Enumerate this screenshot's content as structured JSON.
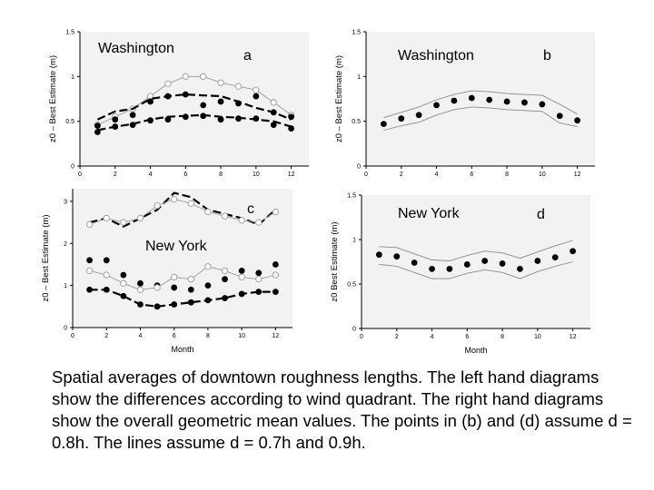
{
  "chart_data": [
    {
      "id": "a",
      "type": "line",
      "panel_label": "a",
      "city_label": "Washington",
      "ylabel": "z0 – Best Estimate (m)",
      "xlabel": "",
      "xlim": [
        0,
        13
      ],
      "ylim": [
        0,
        1.5
      ],
      "xticks": [
        0,
        2,
        4,
        6,
        8,
        10,
        12
      ],
      "yticks": [
        0,
        0.5,
        1,
        1.5
      ],
      "series": [
        {
          "name": "open circles upper",
          "style": "open-gray",
          "x": [
            1,
            2,
            3,
            4,
            5,
            6,
            7,
            8,
            9,
            10,
            11,
            12
          ],
          "y": [
            0.46,
            0.55,
            0.64,
            0.78,
            0.92,
            1.0,
            1.0,
            0.93,
            0.89,
            0.85,
            0.71,
            0.57
          ]
        },
        {
          "name": "dash upper",
          "style": "dash",
          "x": [
            1,
            2,
            3,
            4,
            5,
            6,
            7,
            8,
            9,
            10,
            11,
            12
          ],
          "y": [
            0.52,
            0.61,
            0.64,
            0.75,
            0.78,
            0.8,
            0.79,
            0.78,
            0.72,
            0.65,
            0.6,
            0.52
          ]
        },
        {
          "name": "filled dots upper",
          "style": "filled",
          "x": [
            1,
            2,
            3,
            4,
            5,
            6,
            7,
            8,
            9,
            10,
            11,
            12
          ],
          "y": [
            0.45,
            0.52,
            0.57,
            0.72,
            0.78,
            0.8,
            0.68,
            0.72,
            0.7,
            0.78,
            0.6,
            0.55
          ]
        },
        {
          "name": "dash lower",
          "style": "dash",
          "x": [
            1,
            2,
            3,
            4,
            5,
            6,
            7,
            8,
            9,
            10,
            11,
            12
          ],
          "y": [
            0.4,
            0.44,
            0.47,
            0.52,
            0.55,
            0.56,
            0.57,
            0.55,
            0.54,
            0.52,
            0.5,
            0.44
          ]
        },
        {
          "name": "filled dots lower",
          "style": "filled",
          "x": [
            1,
            2,
            3,
            4,
            5,
            6,
            7,
            8,
            9,
            10,
            11,
            12
          ],
          "y": [
            0.38,
            0.44,
            0.46,
            0.51,
            0.52,
            0.55,
            0.56,
            0.52,
            0.53,
            0.53,
            0.46,
            0.42
          ]
        }
      ]
    },
    {
      "id": "b",
      "type": "scatter",
      "panel_label": "b",
      "city_label": "Washington",
      "ylabel": "z0 – Best Estimate (m)",
      "xlabel": "",
      "xlim": [
        0,
        13
      ],
      "ylim": [
        0,
        1.5
      ],
      "xticks": [
        0,
        2,
        4,
        6,
        8,
        10,
        12
      ],
      "yticks": [
        0,
        0.5,
        1,
        1.5
      ],
      "series": [
        {
          "name": "d = 0.9h",
          "style": "thin",
          "x": [
            1,
            2,
            3,
            4,
            5,
            6,
            7,
            8,
            9,
            10,
            11,
            12
          ],
          "y": [
            0.54,
            0.6,
            0.66,
            0.74,
            0.8,
            0.84,
            0.83,
            0.81,
            0.8,
            0.79,
            0.69,
            0.58
          ]
        },
        {
          "name": "d = 0.8h",
          "style": "filled",
          "x": [
            1,
            2,
            3,
            4,
            5,
            6,
            7,
            8,
            9,
            10,
            11,
            12
          ],
          "y": [
            0.47,
            0.53,
            0.57,
            0.68,
            0.73,
            0.76,
            0.74,
            0.72,
            0.71,
            0.69,
            0.56,
            0.51
          ]
        },
        {
          "name": "d = 0.7h",
          "style": "thin",
          "x": [
            1,
            2,
            3,
            4,
            5,
            6,
            7,
            8,
            9,
            10,
            11,
            12
          ],
          "y": [
            0.4,
            0.45,
            0.49,
            0.57,
            0.63,
            0.66,
            0.65,
            0.63,
            0.62,
            0.61,
            0.48,
            0.44
          ]
        }
      ]
    },
    {
      "id": "c",
      "type": "line",
      "panel_label": "c",
      "city_label": "New York",
      "ylabel": "z0 – Best Estimate (m)",
      "xlabel": "Month",
      "xlim": [
        0,
        13
      ],
      "ylim": [
        0,
        3.3
      ],
      "xticks": [
        0,
        2,
        4,
        6,
        8,
        10,
        12
      ],
      "yticks": [
        0,
        1,
        2,
        3
      ],
      "series": [
        {
          "name": "dash top",
          "style": "dash",
          "x": [
            1,
            2,
            3,
            4,
            5,
            6,
            7,
            8,
            9,
            10,
            11,
            12
          ],
          "y": [
            2.5,
            2.6,
            2.4,
            2.6,
            2.8,
            3.2,
            3.1,
            2.8,
            2.7,
            2.6,
            2.45,
            2.8
          ]
        },
        {
          "name": "open circles top",
          "style": "open-gray",
          "x": [
            1,
            2,
            3,
            4,
            5,
            6,
            7,
            8,
            9,
            10,
            11,
            12
          ],
          "y": [
            2.45,
            2.6,
            2.5,
            2.6,
            2.9,
            3.05,
            2.95,
            2.75,
            2.65,
            2.55,
            2.5,
            2.75
          ]
        },
        {
          "name": "filled dots upper",
          "style": "filled",
          "x": [
            1,
            2,
            3,
            4,
            5,
            6,
            7,
            8,
            9,
            10,
            11,
            12
          ],
          "y": [
            1.6,
            1.6,
            1.25,
            1.05,
            1.0,
            0.95,
            0.9,
            1.0,
            1.15,
            1.35,
            1.3,
            1.5
          ]
        },
        {
          "name": "open circles middle",
          "style": "open-gray",
          "x": [
            1,
            2,
            3,
            4,
            5,
            6,
            7,
            8,
            9,
            10,
            11,
            12
          ],
          "y": [
            1.35,
            1.25,
            1.05,
            0.9,
            0.95,
            1.2,
            1.15,
            1.45,
            1.35,
            1.2,
            1.15,
            1.25
          ]
        },
        {
          "name": "dash lower",
          "style": "dash",
          "x": [
            1,
            2,
            3,
            4,
            5,
            6,
            7,
            8,
            9,
            10,
            11,
            12
          ],
          "y": [
            0.9,
            0.9,
            0.75,
            0.55,
            0.5,
            0.55,
            0.6,
            0.65,
            0.7,
            0.8,
            0.85,
            0.85
          ]
        },
        {
          "name": "filled dots lower",
          "style": "filled",
          "x": [
            1,
            2,
            3,
            4,
            5,
            6,
            7,
            8,
            9,
            10,
            11,
            12
          ],
          "y": [
            0.9,
            0.9,
            0.75,
            0.55,
            0.5,
            0.55,
            0.6,
            0.65,
            0.7,
            0.8,
            0.85,
            0.85
          ]
        }
      ]
    },
    {
      "id": "d",
      "type": "scatter",
      "panel_label": "d",
      "city_label": "New York",
      "ylabel": "z0 Best Estimate (m)",
      "xlabel": "Month",
      "xlim": [
        0,
        13
      ],
      "ylim": [
        0,
        1.5
      ],
      "xticks": [
        0,
        2,
        4,
        6,
        8,
        10,
        12
      ],
      "yticks": [
        0,
        0.5,
        1,
        1.5
      ],
      "series": [
        {
          "name": "d = 0.9h",
          "style": "thin",
          "x": [
            1,
            2,
            3,
            4,
            5,
            6,
            7,
            8,
            9,
            10,
            11,
            12
          ],
          "y": [
            0.92,
            0.91,
            0.84,
            0.77,
            0.76,
            0.82,
            0.87,
            0.85,
            0.79,
            0.86,
            0.93,
            0.99
          ]
        },
        {
          "name": "d = 0.8h",
          "style": "filled",
          "x": [
            1,
            2,
            3,
            4,
            5,
            6,
            7,
            8,
            9,
            10,
            11,
            12
          ],
          "y": [
            0.83,
            0.81,
            0.74,
            0.67,
            0.67,
            0.72,
            0.76,
            0.73,
            0.67,
            0.76,
            0.8,
            0.87
          ]
        },
        {
          "name": "d = 0.7h",
          "style": "thin",
          "x": [
            1,
            2,
            3,
            4,
            5,
            6,
            7,
            8,
            9,
            10,
            11,
            12
          ],
          "y": [
            0.72,
            0.7,
            0.63,
            0.56,
            0.56,
            0.62,
            0.66,
            0.63,
            0.56,
            0.64,
            0.7,
            0.75
          ]
        }
      ]
    }
  ],
  "caption": "Spatial averages of downtown roughness lengths.  The left hand diagrams show the differences according to wind quadrant.  The right hand diagrams show the overall geometric mean values.  The points in (b) and (d) assume d = 0.8h.  The lines assume d = 0.7h and 0.9h."
}
